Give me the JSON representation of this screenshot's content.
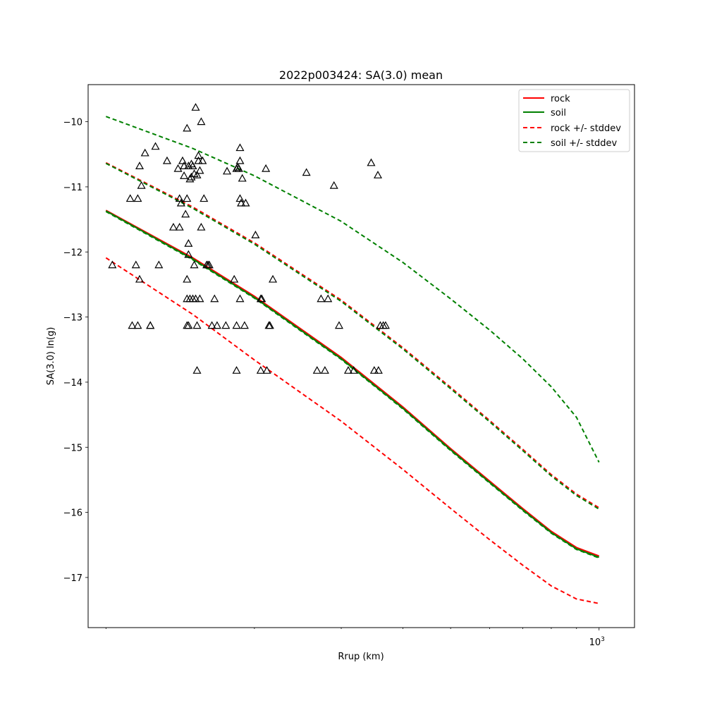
{
  "chart_data": {
    "type": "line",
    "title": "2022p003424: SA(3.0) mean",
    "xlabel": "Rrup (km)",
    "ylabel": "SA(3.0) ln(g)",
    "xscale": "log",
    "xlim": [
      92,
      1180
    ],
    "ylim": [
      -17.77,
      -9.43
    ],
    "x_ticks": [
      {
        "value": 1000,
        "label": "10",
        "exp": "3"
      }
    ],
    "x_minor_ticks": [
      100,
      200,
      300,
      400,
      500,
      600,
      700,
      800,
      900
    ],
    "y_ticks": [
      {
        "value": -10,
        "label": "−10"
      },
      {
        "value": -11,
        "label": "−11"
      },
      {
        "value": -12,
        "label": "−12"
      },
      {
        "value": -13,
        "label": "−13"
      },
      {
        "value": -14,
        "label": "−14"
      },
      {
        "value": -15,
        "label": "−15"
      },
      {
        "value": -16,
        "label": "−16"
      },
      {
        "value": -17,
        "label": "−17"
      }
    ],
    "grid": false,
    "legend_position": "top-right",
    "curve_x": [
      100,
      150,
      200,
      300,
      400,
      500,
      600,
      700,
      800,
      900,
      1000
    ],
    "series": [
      {
        "name": "rock",
        "color": "#ff0000",
        "dash": false,
        "values": [
          -11.36,
          -12.09,
          -12.68,
          -13.62,
          -14.38,
          -15.02,
          -15.52,
          -15.94,
          -16.29,
          -16.54,
          -16.67
        ]
      },
      {
        "name": "soil",
        "color": "#008000",
        "dash": false,
        "values": [
          -11.37,
          -12.11,
          -12.7,
          -13.64,
          -14.4,
          -15.04,
          -15.54,
          -15.96,
          -16.31,
          -16.56,
          -16.69
        ]
      },
      {
        "name": "rock +/- stddev",
        "color": "#ff0000",
        "dash": true,
        "values": [
          -12.09,
          -12.96,
          -13.66,
          -14.6,
          -15.34,
          -15.94,
          -16.42,
          -16.81,
          -17.13,
          -17.33,
          -17.4
        ]
      },
      {
        "name": "",
        "color": "#ff0000",
        "dash": true,
        "values": [
          -10.63,
          -11.31,
          -11.86,
          -12.74,
          -13.47,
          -14.08,
          -14.59,
          -15.03,
          -15.42,
          -15.72,
          -15.93
        ]
      },
      {
        "name": "soil +/- stddev",
        "color": "#008000",
        "dash": true,
        "values": [
          -11.38,
          -12.12,
          -12.71,
          -13.65,
          -14.41,
          -15.05,
          -15.55,
          -15.97,
          -16.32,
          -16.57,
          -16.7
        ]
      },
      {
        "name": "",
        "color": "#008000",
        "dash": true,
        "values": [
          -10.64,
          -11.33,
          -11.88,
          -12.76,
          -13.49,
          -14.1,
          -14.61,
          -15.05,
          -15.44,
          -15.74,
          -15.95
        ]
      },
      {
        "name": "",
        "color": "#008000",
        "dash": true,
        "values": [
          -9.92,
          -10.41,
          -10.83,
          -11.53,
          -12.16,
          -12.72,
          -13.2,
          -13.64,
          -14.07,
          -14.54,
          -15.23
        ]
      }
    ],
    "observations": {
      "marker": "triangle",
      "points": [
        {
          "x": 103,
          "y": -12.2
        },
        {
          "x": 112,
          "y": -11.18
        },
        {
          "x": 113,
          "y": -13.13
        },
        {
          "x": 115,
          "y": -12.2
        },
        {
          "x": 116,
          "y": -13.13
        },
        {
          "x": 116,
          "y": -11.18
        },
        {
          "x": 117,
          "y": -10.68
        },
        {
          "x": 117,
          "y": -12.42
        },
        {
          "x": 118,
          "y": -10.98
        },
        {
          "x": 120,
          "y": -10.48
        },
        {
          "x": 123,
          "y": -13.13
        },
        {
          "x": 123,
          "y": -13.13
        },
        {
          "x": 126,
          "y": -10.38
        },
        {
          "x": 128,
          "y": -12.2
        },
        {
          "x": 133,
          "y": -10.6
        },
        {
          "x": 137,
          "y": -11.62
        },
        {
          "x": 140,
          "y": -10.72
        },
        {
          "x": 141,
          "y": -11.18
        },
        {
          "x": 141,
          "y": -11.62
        },
        {
          "x": 142,
          "y": -11.25
        },
        {
          "x": 143,
          "y": -10.6
        },
        {
          "x": 144,
          "y": -10.68
        },
        {
          "x": 144,
          "y": -10.83
        },
        {
          "x": 145,
          "y": -11.42
        },
        {
          "x": 146,
          "y": -11.18
        },
        {
          "x": 146,
          "y": -12.42
        },
        {
          "x": 146,
          "y": -12.72
        },
        {
          "x": 146,
          "y": -13.13
        },
        {
          "x": 146,
          "y": -10.1
        },
        {
          "x": 147,
          "y": -11.87
        },
        {
          "x": 147,
          "y": -13.13
        },
        {
          "x": 147,
          "y": -10.68
        },
        {
          "x": 147,
          "y": -12.04
        },
        {
          "x": 148,
          "y": -10.88
        },
        {
          "x": 148,
          "y": -12.72
        },
        {
          "x": 149,
          "y": -10.85
        },
        {
          "x": 149,
          "y": -10.65
        },
        {
          "x": 150,
          "y": -12.72
        },
        {
          "x": 150,
          "y": -10.68
        },
        {
          "x": 151,
          "y": -12.2
        },
        {
          "x": 151,
          "y": -10.8
        },
        {
          "x": 152,
          "y": -9.78
        },
        {
          "x": 152,
          "y": -12.72
        },
        {
          "x": 153,
          "y": -13.13
        },
        {
          "x": 153,
          "y": -13.82
        },
        {
          "x": 153,
          "y": -10.82
        },
        {
          "x": 154,
          "y": -10.6
        },
        {
          "x": 154,
          "y": -10.52
        },
        {
          "x": 155,
          "y": -10.75
        },
        {
          "x": 155,
          "y": -12.72
        },
        {
          "x": 156,
          "y": -11.62
        },
        {
          "x": 156,
          "y": -10.0
        },
        {
          "x": 157,
          "y": -10.6
        },
        {
          "x": 158,
          "y": -11.18
        },
        {
          "x": 160,
          "y": -12.2
        },
        {
          "x": 161,
          "y": -12.2
        },
        {
          "x": 162,
          "y": -12.2
        },
        {
          "x": 164,
          "y": -13.13
        },
        {
          "x": 166,
          "y": -12.72
        },
        {
          "x": 168,
          "y": -13.13
        },
        {
          "x": 175,
          "y": -13.13
        },
        {
          "x": 176,
          "y": -10.76
        },
        {
          "x": 182,
          "y": -12.42
        },
        {
          "x": 184,
          "y": -13.82
        },
        {
          "x": 184,
          "y": -10.72
        },
        {
          "x": 184,
          "y": -13.13
        },
        {
          "x": 185,
          "y": -10.7
        },
        {
          "x": 186,
          "y": -10.72
        },
        {
          "x": 187,
          "y": -12.72
        },
        {
          "x": 187,
          "y": -11.18
        },
        {
          "x": 187,
          "y": -10.6
        },
        {
          "x": 187,
          "y": -10.4
        },
        {
          "x": 188,
          "y": -11.25
        },
        {
          "x": 189,
          "y": -10.87
        },
        {
          "x": 191,
          "y": -13.13
        },
        {
          "x": 192,
          "y": -11.25
        },
        {
          "x": 201,
          "y": -11.74
        },
        {
          "x": 206,
          "y": -12.72
        },
        {
          "x": 206,
          "y": -13.82
        },
        {
          "x": 207,
          "y": -12.72
        },
        {
          "x": 211,
          "y": -10.72
        },
        {
          "x": 212,
          "y": -13.82
        },
        {
          "x": 214,
          "y": -13.13
        },
        {
          "x": 215,
          "y": -13.13
        },
        {
          "x": 218,
          "y": -12.42
        },
        {
          "x": 255,
          "y": -10.78
        },
        {
          "x": 268,
          "y": -13.82
        },
        {
          "x": 273,
          "y": -12.72
        },
        {
          "x": 278,
          "y": -13.82
        },
        {
          "x": 282,
          "y": -12.72
        },
        {
          "x": 290,
          "y": -10.98
        },
        {
          "x": 297,
          "y": -13.13
        },
        {
          "x": 310,
          "y": -13.82
        },
        {
          "x": 318,
          "y": -13.82
        },
        {
          "x": 345,
          "y": -10.63
        },
        {
          "x": 350,
          "y": -13.82
        },
        {
          "x": 357,
          "y": -13.82
        },
        {
          "x": 356,
          "y": -10.82
        },
        {
          "x": 360,
          "y": -13.13
        },
        {
          "x": 365,
          "y": -13.13
        },
        {
          "x": 369,
          "y": -13.13
        }
      ]
    }
  }
}
